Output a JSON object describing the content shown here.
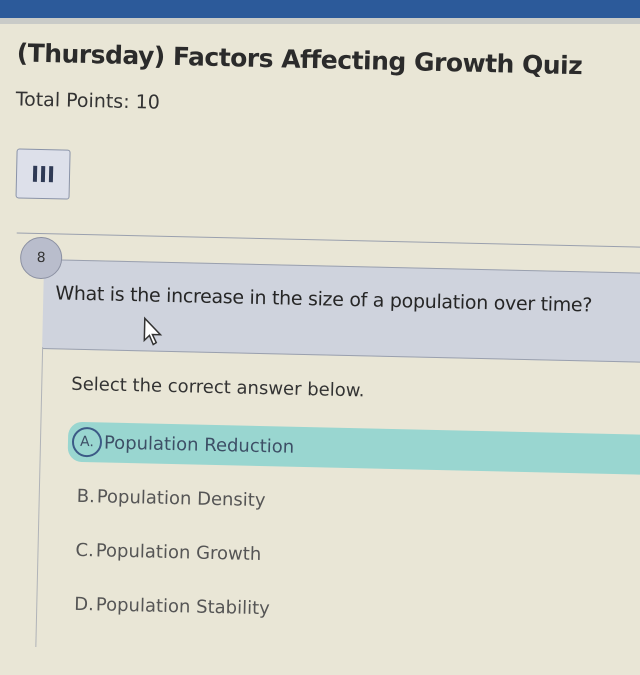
{
  "quiz": {
    "title": "(Thursday) Factors Affecting Growth Quiz",
    "total_points": "Total Points: 10",
    "menu_icon": "hamburger-menu-icon"
  },
  "question": {
    "number": "8",
    "text": "What is the increase in the size of a population over time?",
    "instruction": "Select the correct answer below.",
    "options": [
      {
        "letter": "A.",
        "label": "Population Reduction",
        "selected": true
      },
      {
        "letter": "B.",
        "label": "Population Density",
        "selected": false
      },
      {
        "letter": "C.",
        "label": "Population Growth",
        "selected": false
      },
      {
        "letter": "D.",
        "label": "Population Stability",
        "selected": false
      }
    ]
  },
  "colors": {
    "selected_option": "#99d6d0",
    "header_bar": "#2c5a9a",
    "question_bg": "#cfd3dd"
  }
}
